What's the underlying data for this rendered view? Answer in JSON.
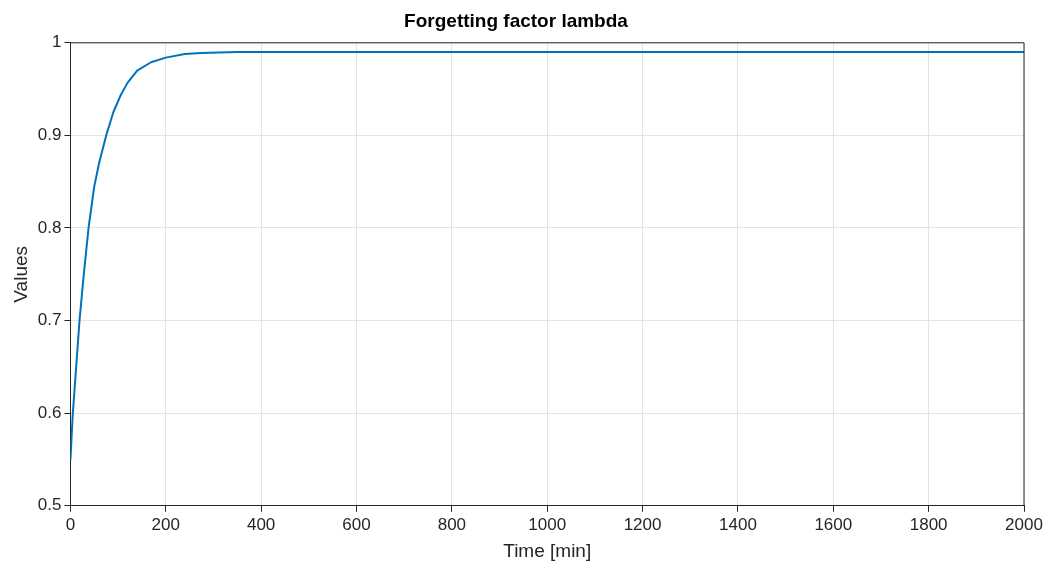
{
  "chart_data": {
    "type": "line",
    "title": "Forgetting factor lambda",
    "xlabel": "Time [min]",
    "ylabel": "Values",
    "x": [
      0,
      5,
      10,
      19,
      28,
      38,
      50,
      60,
      75,
      90,
      105,
      120,
      140,
      169,
      200,
      240,
      274,
      350,
      600,
      1000,
      1500,
      2000
    ],
    "series": [
      {
        "color": "#0072bd",
        "values": [
          0.55,
          0.6,
          0.635,
          0.7,
          0.75,
          0.8,
          0.845,
          0.87,
          0.9,
          0.925,
          0.943,
          0.957,
          0.97,
          0.979,
          0.984,
          0.988,
          0.989,
          0.99,
          0.99,
          0.99,
          0.99,
          0.99
        ]
      }
    ],
    "xlim": [
      0,
      2000
    ],
    "xticks": [
      0,
      200,
      400,
      600,
      800,
      1000,
      1200,
      1400,
      1600,
      1800,
      2000
    ],
    "ylim": [
      0.5,
      1
    ],
    "yticks": [
      0.5,
      0.6,
      0.7,
      0.8,
      0.9,
      1
    ],
    "grid": true,
    "legend": false,
    "marker": "none",
    "line_style": "solid"
  }
}
